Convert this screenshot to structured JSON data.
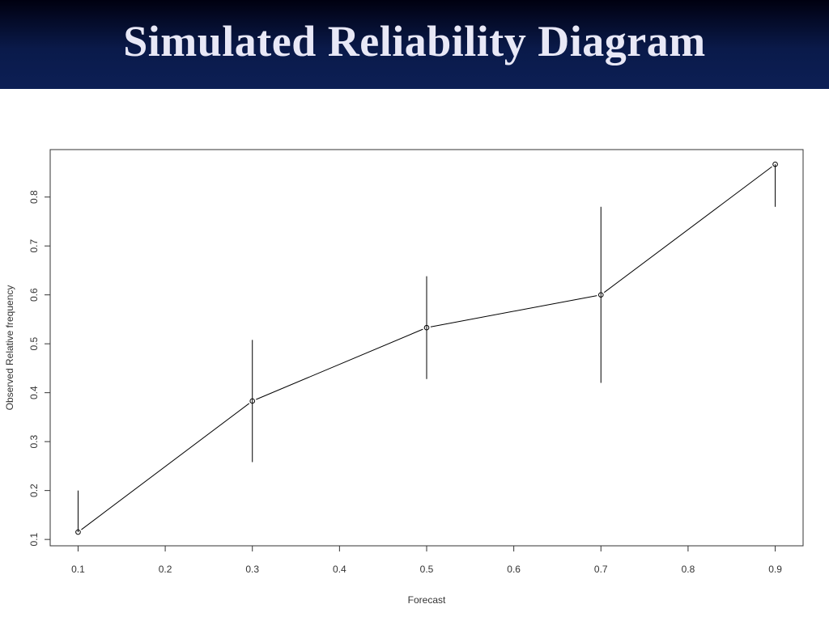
{
  "slide": {
    "title": "Simulated Reliability Diagram"
  },
  "chart_data": {
    "type": "line",
    "title": "",
    "xlabel": "Forecast",
    "ylabel": "Observed Relative frequency",
    "x": [
      0.1,
      0.3,
      0.5,
      0.7,
      0.9
    ],
    "series": [
      {
        "values": [
          0.115,
          0.383,
          0.533,
          0.6,
          0.867
        ],
        "lower": [
          0.115,
          0.258,
          0.428,
          0.42,
          0.78
        ],
        "upper": [
          0.2,
          0.508,
          0.638,
          0.78,
          0.867
        ]
      }
    ],
    "xticks": [
      "0.1",
      "0.2",
      "0.3",
      "0.4",
      "0.5",
      "0.6",
      "0.7",
      "0.8",
      "0.9"
    ],
    "yticks": [
      "0.1",
      "0.2",
      "0.3",
      "0.4",
      "0.5",
      "0.6",
      "0.7",
      "0.8"
    ],
    "xlim": [
      0.068,
      0.932
    ],
    "ylim": [
      0.087,
      0.897
    ],
    "grid": false,
    "legend": "none",
    "line_color": "#000000"
  }
}
